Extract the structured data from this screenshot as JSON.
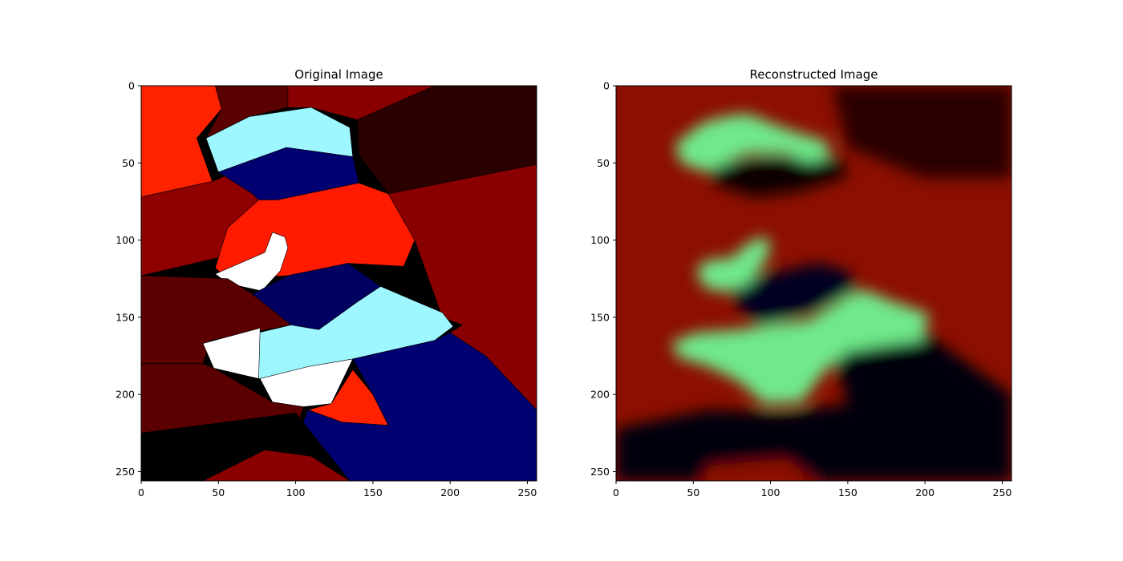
{
  "chart_data": [
    {
      "type": "heatmap",
      "title": "Original Image",
      "xlabel": "",
      "ylabel": "",
      "xlim": [
        0,
        256
      ],
      "ylim": [
        256,
        0
      ],
      "xticks": [
        0,
        50,
        100,
        150,
        200,
        250
      ],
      "yticks": [
        0,
        50,
        100,
        150,
        200,
        250
      ],
      "grid": false,
      "colormap": "jet-like segmentation",
      "regions": [
        {
          "color": "#ff2200",
          "polygon": [
            [
              0,
              0
            ],
            [
              48,
              0
            ],
            [
              52,
              15
            ],
            [
              36,
              34
            ],
            [
              46,
              62
            ],
            [
              0,
              72
            ]
          ]
        },
        {
          "color": "#5a0000",
          "polygon": [
            [
              48,
              0
            ],
            [
              95,
              0
            ],
            [
              95,
              14
            ],
            [
              70,
              20
            ],
            [
              42,
              34
            ],
            [
              52,
              15
            ]
          ]
        },
        {
          "color": "#8a0000",
          "polygon": [
            [
              95,
              0
            ],
            [
              190,
              0
            ],
            [
              140,
              22
            ],
            [
              110,
              14
            ],
            [
              95,
              14
            ]
          ]
        },
        {
          "color": "#2a0000",
          "polygon": [
            [
              190,
              0
            ],
            [
              256,
              0
            ],
            [
              256,
              51
            ],
            [
              160,
              70
            ],
            [
              141,
              45
            ],
            [
              140,
              22
            ]
          ]
        },
        {
          "color": "#8f0000",
          "polygon": [
            [
              0,
              72
            ],
            [
              46,
              62
            ],
            [
              60,
              56
            ],
            [
              72,
              70
            ],
            [
              95,
              78
            ],
            [
              95,
              90
            ],
            [
              60,
              92
            ],
            [
              56,
              110
            ],
            [
              0,
              123
            ]
          ]
        },
        {
          "color": "#9ef7ff",
          "polygon": [
            [
              42,
              34
            ],
            [
              70,
              20
            ],
            [
              110,
              14
            ],
            [
              135,
              27
            ],
            [
              137,
              46
            ],
            [
              94,
              40
            ],
            [
              50,
              56
            ]
          ]
        },
        {
          "color": "#000070",
          "polygon": [
            [
              50,
              56
            ],
            [
              94,
              40
            ],
            [
              137,
              46
            ],
            [
              141,
              63
            ],
            [
              88,
              74
            ],
            [
              76,
              74
            ],
            [
              72,
              70
            ]
          ]
        },
        {
          "color": "#ff1a00",
          "polygon": [
            [
              76,
              74
            ],
            [
              88,
              74
            ],
            [
              141,
              63
            ],
            [
              160,
              70
            ],
            [
              177,
              100
            ],
            [
              170,
              117
            ],
            [
              134,
              115
            ],
            [
              95,
              123
            ],
            [
              56,
              125
            ],
            [
              48,
              118
            ],
            [
              56,
              92
            ]
          ]
        },
        {
          "color": "#ffffff",
          "polygon": [
            [
              48,
              122
            ],
            [
              80,
              108
            ],
            [
              85,
              95
            ],
            [
              93,
              98
            ],
            [
              95,
              105
            ],
            [
              90,
              120
            ],
            [
              78,
              133
            ],
            [
              56,
              128
            ]
          ]
        },
        {
          "color": "#8a0000",
          "polygon": [
            [
              160,
              70
            ],
            [
              256,
              51
            ],
            [
              256,
              210
            ],
            [
              223,
              175
            ],
            [
              200,
              160
            ],
            [
              208,
              155
            ],
            [
              195,
              150
            ],
            [
              177,
              100
            ]
          ]
        },
        {
          "color": "#5a0000",
          "polygon": [
            [
              0,
              123
            ],
            [
              56,
              125
            ],
            [
              72,
              135
            ],
            [
              80,
              140
            ],
            [
              97,
              155
            ],
            [
              45,
              165
            ],
            [
              40,
              180
            ],
            [
              0,
              180
            ]
          ]
        },
        {
          "color": "#000060",
          "polygon": [
            [
              72,
              135
            ],
            [
              95,
              123
            ],
            [
              134,
              115
            ],
            [
              155,
              130
            ],
            [
              140,
              140
            ],
            [
              115,
              158
            ],
            [
              97,
              155
            ]
          ]
        },
        {
          "color": "#9ef7ff",
          "polygon": [
            [
              76,
              160
            ],
            [
              97,
              155
            ],
            [
              115,
              158
            ],
            [
              140,
              140
            ],
            [
              155,
              130
            ],
            [
              195,
              147
            ],
            [
              202,
              156
            ],
            [
              190,
              165
            ],
            [
              137,
              177
            ],
            [
              108,
              182
            ],
            [
              76,
              190
            ]
          ]
        },
        {
          "color": "#ffffff",
          "polygon": [
            [
              40,
              167
            ],
            [
              77,
              157
            ],
            [
              76,
              190
            ],
            [
              108,
              182
            ],
            [
              137,
              177
            ],
            [
              123,
              206
            ],
            [
              105,
              208
            ],
            [
              85,
              205
            ],
            [
              77,
              190
            ],
            [
              47,
              183
            ]
          ]
        },
        {
          "color": "#ff2200",
          "polygon": [
            [
              108,
              210
            ],
            [
              123,
              206
            ],
            [
              137,
              184
            ],
            [
              150,
              200
            ],
            [
              160,
              220
            ],
            [
              130,
              218
            ]
          ]
        },
        {
          "color": "#000070",
          "polygon": [
            [
              137,
              177
            ],
            [
              190,
              165
            ],
            [
              200,
              160
            ],
            [
              223,
              175
            ],
            [
              256,
              210
            ],
            [
              256,
              256
            ],
            [
              135,
              256
            ],
            [
              100,
              230
            ],
            [
              108,
              210
            ],
            [
              130,
              218
            ],
            [
              160,
              220
            ],
            [
              150,
              200
            ]
          ]
        },
        {
          "color": "#5a0000",
          "polygon": [
            [
              0,
              180
            ],
            [
              40,
              180
            ],
            [
              47,
              183
            ],
            [
              85,
              205
            ],
            [
              105,
              208
            ],
            [
              100,
              225
            ],
            [
              0,
              225
            ]
          ]
        },
        {
          "color": "#000000",
          "polygon": [
            [
              0,
              225
            ],
            [
              100,
              212
            ],
            [
              135,
              256
            ],
            [
              75,
              256
            ],
            [
              30,
              248
            ],
            [
              0,
              240
            ]
          ]
        },
        {
          "color": "#8a0000",
          "polygon": [
            [
              40,
              256
            ],
            [
              80,
              236
            ],
            [
              110,
              240
            ],
            [
              135,
              256
            ]
          ]
        }
      ]
    },
    {
      "type": "heatmap",
      "title": "Reconstructed Image",
      "xlabel": "",
      "ylabel": "",
      "xlim": [
        0,
        256
      ],
      "ylim": [
        256,
        0
      ],
      "xticks": [
        0,
        50,
        100,
        150,
        200,
        250
      ],
      "yticks": [
        0,
        50,
        100,
        150,
        200,
        250
      ],
      "grid": false,
      "colormap": "jet-like segmentation (blurred)",
      "background": "#8c0f00",
      "blobs": [
        {
          "color": "#2a0000",
          "polygon": [
            [
              140,
              0
            ],
            [
              256,
              0
            ],
            [
              256,
              60
            ],
            [
              200,
              60
            ],
            [
              150,
              40
            ]
          ]
        },
        {
          "color": "#0b0000",
          "polygon": [
            [
              60,
              52
            ],
            [
              100,
              46
            ],
            [
              145,
              48
            ],
            [
              150,
              58
            ],
            [
              120,
              68
            ],
            [
              90,
              72
            ],
            [
              65,
              64
            ]
          ]
        },
        {
          "color": "#000020",
          "polygon": [
            [
              75,
              128
            ],
            [
              100,
              122
            ],
            [
              130,
              115
            ],
            [
              150,
              120
            ],
            [
              155,
              132
            ],
            [
              130,
              145
            ],
            [
              95,
              155
            ],
            [
              78,
              142
            ]
          ]
        },
        {
          "color": "#000008",
          "polygon": [
            [
              140,
              170
            ],
            [
              200,
              160
            ],
            [
              256,
              200
            ],
            [
              256,
              256
            ],
            [
              0,
              256
            ],
            [
              0,
              222
            ],
            [
              60,
              210
            ],
            [
              110,
              212
            ],
            [
              150,
              206
            ]
          ]
        },
        {
          "color": "#8c0f00",
          "polygon": [
            [
              60,
              246
            ],
            [
              110,
              242
            ],
            [
              130,
              256
            ],
            [
              55,
              256
            ]
          ]
        },
        {
          "color": "#6fe98a",
          "polygon": [
            [
              38,
              38
            ],
            [
              56,
              24
            ],
            [
              70,
              20
            ],
            [
              85,
              18
            ],
            [
              100,
              24
            ],
            [
              116,
              30
            ],
            [
              136,
              36
            ],
            [
              139,
              46
            ],
            [
              125,
              50
            ],
            [
              110,
              44
            ],
            [
              85,
              44
            ],
            [
              58,
              56
            ],
            [
              42,
              50
            ]
          ]
        },
        {
          "color": "#6fe98a",
          "polygon": [
            [
              52,
              118
            ],
            [
              62,
              112
            ],
            [
              74,
              112
            ],
            [
              88,
              100
            ],
            [
              98,
              98
            ],
            [
              100,
              106
            ],
            [
              94,
              118
            ],
            [
              86,
              128
            ],
            [
              70,
              134
            ],
            [
              56,
              130
            ]
          ]
        },
        {
          "color": "#6fe98a",
          "polygon": [
            [
              36,
              166
            ],
            [
              52,
              160
            ],
            [
              80,
              158
            ],
            [
              105,
              154
            ],
            [
              125,
              152
            ],
            [
              150,
              136
            ],
            [
              160,
              132
            ],
            [
              180,
              140
            ],
            [
              203,
              148
            ],
            [
              198,
              165
            ],
            [
              175,
              168
            ],
            [
              150,
              172
            ],
            [
              135,
              185
            ],
            [
              120,
              205
            ],
            [
              96,
              206
            ],
            [
              80,
              192
            ],
            [
              60,
              182
            ],
            [
              40,
              176
            ]
          ]
        }
      ]
    }
  ]
}
